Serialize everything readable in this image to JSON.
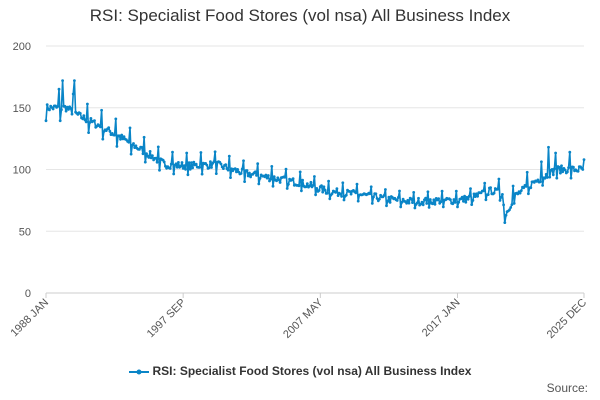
{
  "title": "RSI: Specialist Food Stores (vol nsa) All Business Index",
  "source_label": "Source:",
  "colors": {
    "series": "#0a85c7",
    "grid": "#e6e6e6",
    "axis": "#cccccc",
    "text": "#333333"
  },
  "chart_data": {
    "type": "line",
    "title": "RSI: Specialist Food Stores (vol nsa) All Business Index",
    "xlabel": "",
    "ylabel": "",
    "ylim": [
      0,
      200
    ],
    "y_ticks": [
      0,
      50,
      100,
      150,
      200
    ],
    "x_ticks": [
      "1988 JAN",
      "1997 SEP",
      "2007 MAY",
      "2017 JAN",
      "2025 DEC"
    ],
    "x_range": [
      "1988-01",
      "2025-12"
    ],
    "grid": true,
    "legend_position": "bottom",
    "series": [
      {
        "name": "RSI: Specialist Food Stores (vol nsa) All Business Index",
        "color": "#0a85c7",
        "frequency": "monthly",
        "trend": [
          [
            "1988-01",
            150
          ],
          [
            "1989-06",
            150
          ],
          [
            "1990-06",
            143
          ],
          [
            "1992-01",
            134
          ],
          [
            "1993-06",
            125
          ],
          [
            "1995-01",
            114
          ],
          [
            "1996-06",
            104
          ],
          [
            "1998-01",
            103
          ],
          [
            "2000-01",
            104
          ],
          [
            "2002-01",
            97
          ],
          [
            "2004-01",
            93
          ],
          [
            "2006-01",
            89
          ],
          [
            "2008-01",
            82
          ],
          [
            "2010-01",
            80
          ],
          [
            "2012-01",
            76
          ],
          [
            "2014-01",
            74
          ],
          [
            "2016-01",
            75
          ],
          [
            "2017-01",
            75
          ],
          [
            "2018-01",
            77
          ],
          [
            "2019-06",
            83
          ],
          [
            "2020-03",
            80
          ],
          [
            "2020-05",
            62
          ],
          [
            "2021-01",
            78
          ],
          [
            "2022-06",
            90
          ],
          [
            "2024-01",
            100
          ],
          [
            "2025-12",
            100
          ]
        ],
        "extremes": [
          [
            "1989-03",
            172
          ],
          [
            "1990-01",
            172
          ],
          [
            "1990-12",
            153
          ],
          [
            "2020-05",
            57
          ],
          [
            "2023-06",
            118
          ],
          [
            "2025-12",
            108
          ]
        ]
      }
    ]
  }
}
